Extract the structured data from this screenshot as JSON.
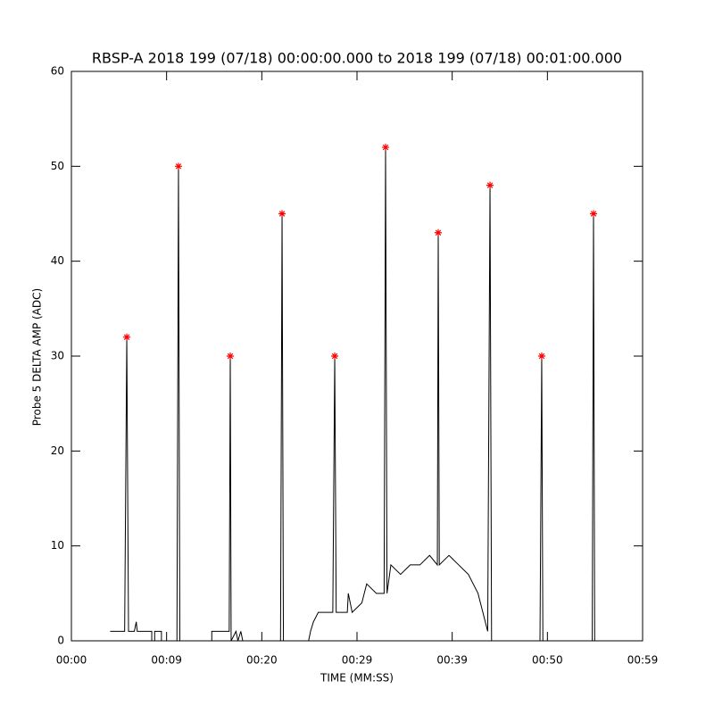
{
  "chart_data": {
    "type": "line",
    "title": "RBSP-A 2018 199 (07/18) 00:00:00.000 to 2018 199 (07/18) 00:01:00.000",
    "xlabel": "TIME (MM:SS)",
    "ylabel": "Probe 5 DELTA AMP (ADC)",
    "xlim": [
      0,
      59
    ],
    "ylim": [
      0,
      60
    ],
    "xticks": [
      {
        "value": 0,
        "label": "00:00"
      },
      {
        "value": 9.833,
        "label": "00:09"
      },
      {
        "value": 19.667,
        "label": "00:20"
      },
      {
        "value": 29.5,
        "label": "00:29"
      },
      {
        "value": 39.333,
        "label": "00:39"
      },
      {
        "value": 49.167,
        "label": "00:50"
      },
      {
        "value": 59,
        "label": "00:59"
      }
    ],
    "yticks": [
      0,
      10,
      20,
      30,
      40,
      50,
      60
    ],
    "line": {
      "color": "#000000",
      "x": [
        4.0,
        5.5,
        5.72,
        5.9,
        6.5,
        6.7,
        6.8,
        8.3,
        8.3,
        8.6,
        8.6,
        9.3,
        9.3,
        10.9,
        11.06,
        11.2,
        14.5,
        14.5,
        16.3,
        16.41,
        16.5,
        17.0,
        17.2,
        17.5,
        17.7,
        21.6,
        21.76,
        21.9,
        24.5,
        24.7,
        25.0,
        25.5,
        27.0,
        27.2,
        27.35,
        28.5,
        28.6,
        29.0,
        30.0,
        30.5,
        31.5,
        32.3,
        32.45,
        32.6,
        33.0,
        34.0,
        35.0,
        36.0,
        37.0,
        37.8,
        37.89,
        38.0,
        39.0,
        40.0,
        41.0,
        42.0,
        42.5,
        43.0,
        43.24,
        43.4,
        48.4,
        48.58,
        48.7,
        53.8,
        53.93,
        54.05
      ],
      "values": [
        1,
        1,
        32,
        1,
        1,
        2,
        1,
        1,
        0,
        0,
        1,
        1,
        0,
        0,
        50,
        0,
        0,
        1,
        1,
        30,
        0,
        1,
        0,
        1,
        0,
        0,
        45,
        0,
        0,
        1,
        2,
        3,
        3,
        30,
        3,
        3,
        5,
        3,
        4,
        6,
        5,
        5,
        52,
        5,
        8,
        7,
        8,
        8,
        9,
        8,
        43,
        8,
        9,
        8,
        7,
        5,
        3,
        1,
        48,
        0,
        0,
        30,
        0,
        0,
        45,
        0
      ]
    },
    "peaks": {
      "color": "#ff0000",
      "x": [
        5.72,
        11.06,
        16.41,
        21.76,
        27.2,
        32.45,
        37.89,
        43.24,
        48.58,
        53.93
      ],
      "values": [
        32,
        50,
        30,
        45,
        30,
        52,
        43,
        48,
        30,
        45
      ]
    }
  }
}
